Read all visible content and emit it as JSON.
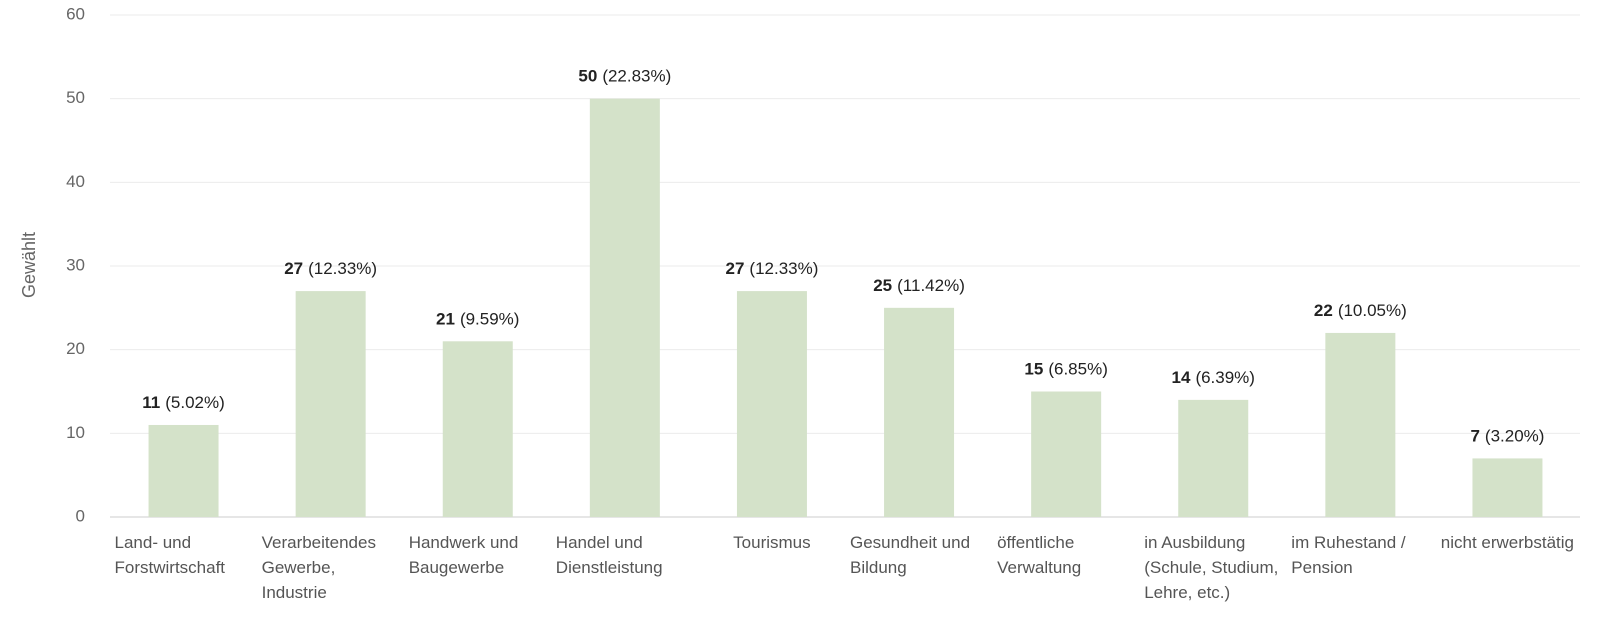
{
  "chart_data": {
    "type": "bar",
    "y_axis_label": "Gewählt",
    "categories": [
      "Land- und Forstwirtschaft",
      "Verarbeitendes Gewerbe, Industrie",
      "Handwerk und Baugewerbe",
      "Handel und Dienstleistung",
      "Tourismus",
      "Gesundheit und Bildung",
      "öffentliche Verwaltung",
      "in Ausbildung (Schule, Studium, Lehre, etc.)",
      "im Ruhestand / Pension",
      "nicht erwerbstätig"
    ],
    "values": [
      11,
      27,
      21,
      50,
      27,
      25,
      15,
      14,
      22,
      7
    ],
    "share_labels": [
      "(5.02%)",
      "(12.33%)",
      "(9.59%)",
      "(22.83%)",
      "(12.33%)",
      "(11.42%)",
      "(6.85%)",
      "(6.39%)",
      "(10.05%)",
      "(3.20%)"
    ],
    "color": "#d4e2c9",
    "ylim": [
      0,
      60
    ],
    "yticks": [
      0,
      10,
      20,
      30,
      40,
      50,
      60
    ],
    "grid": true
  }
}
